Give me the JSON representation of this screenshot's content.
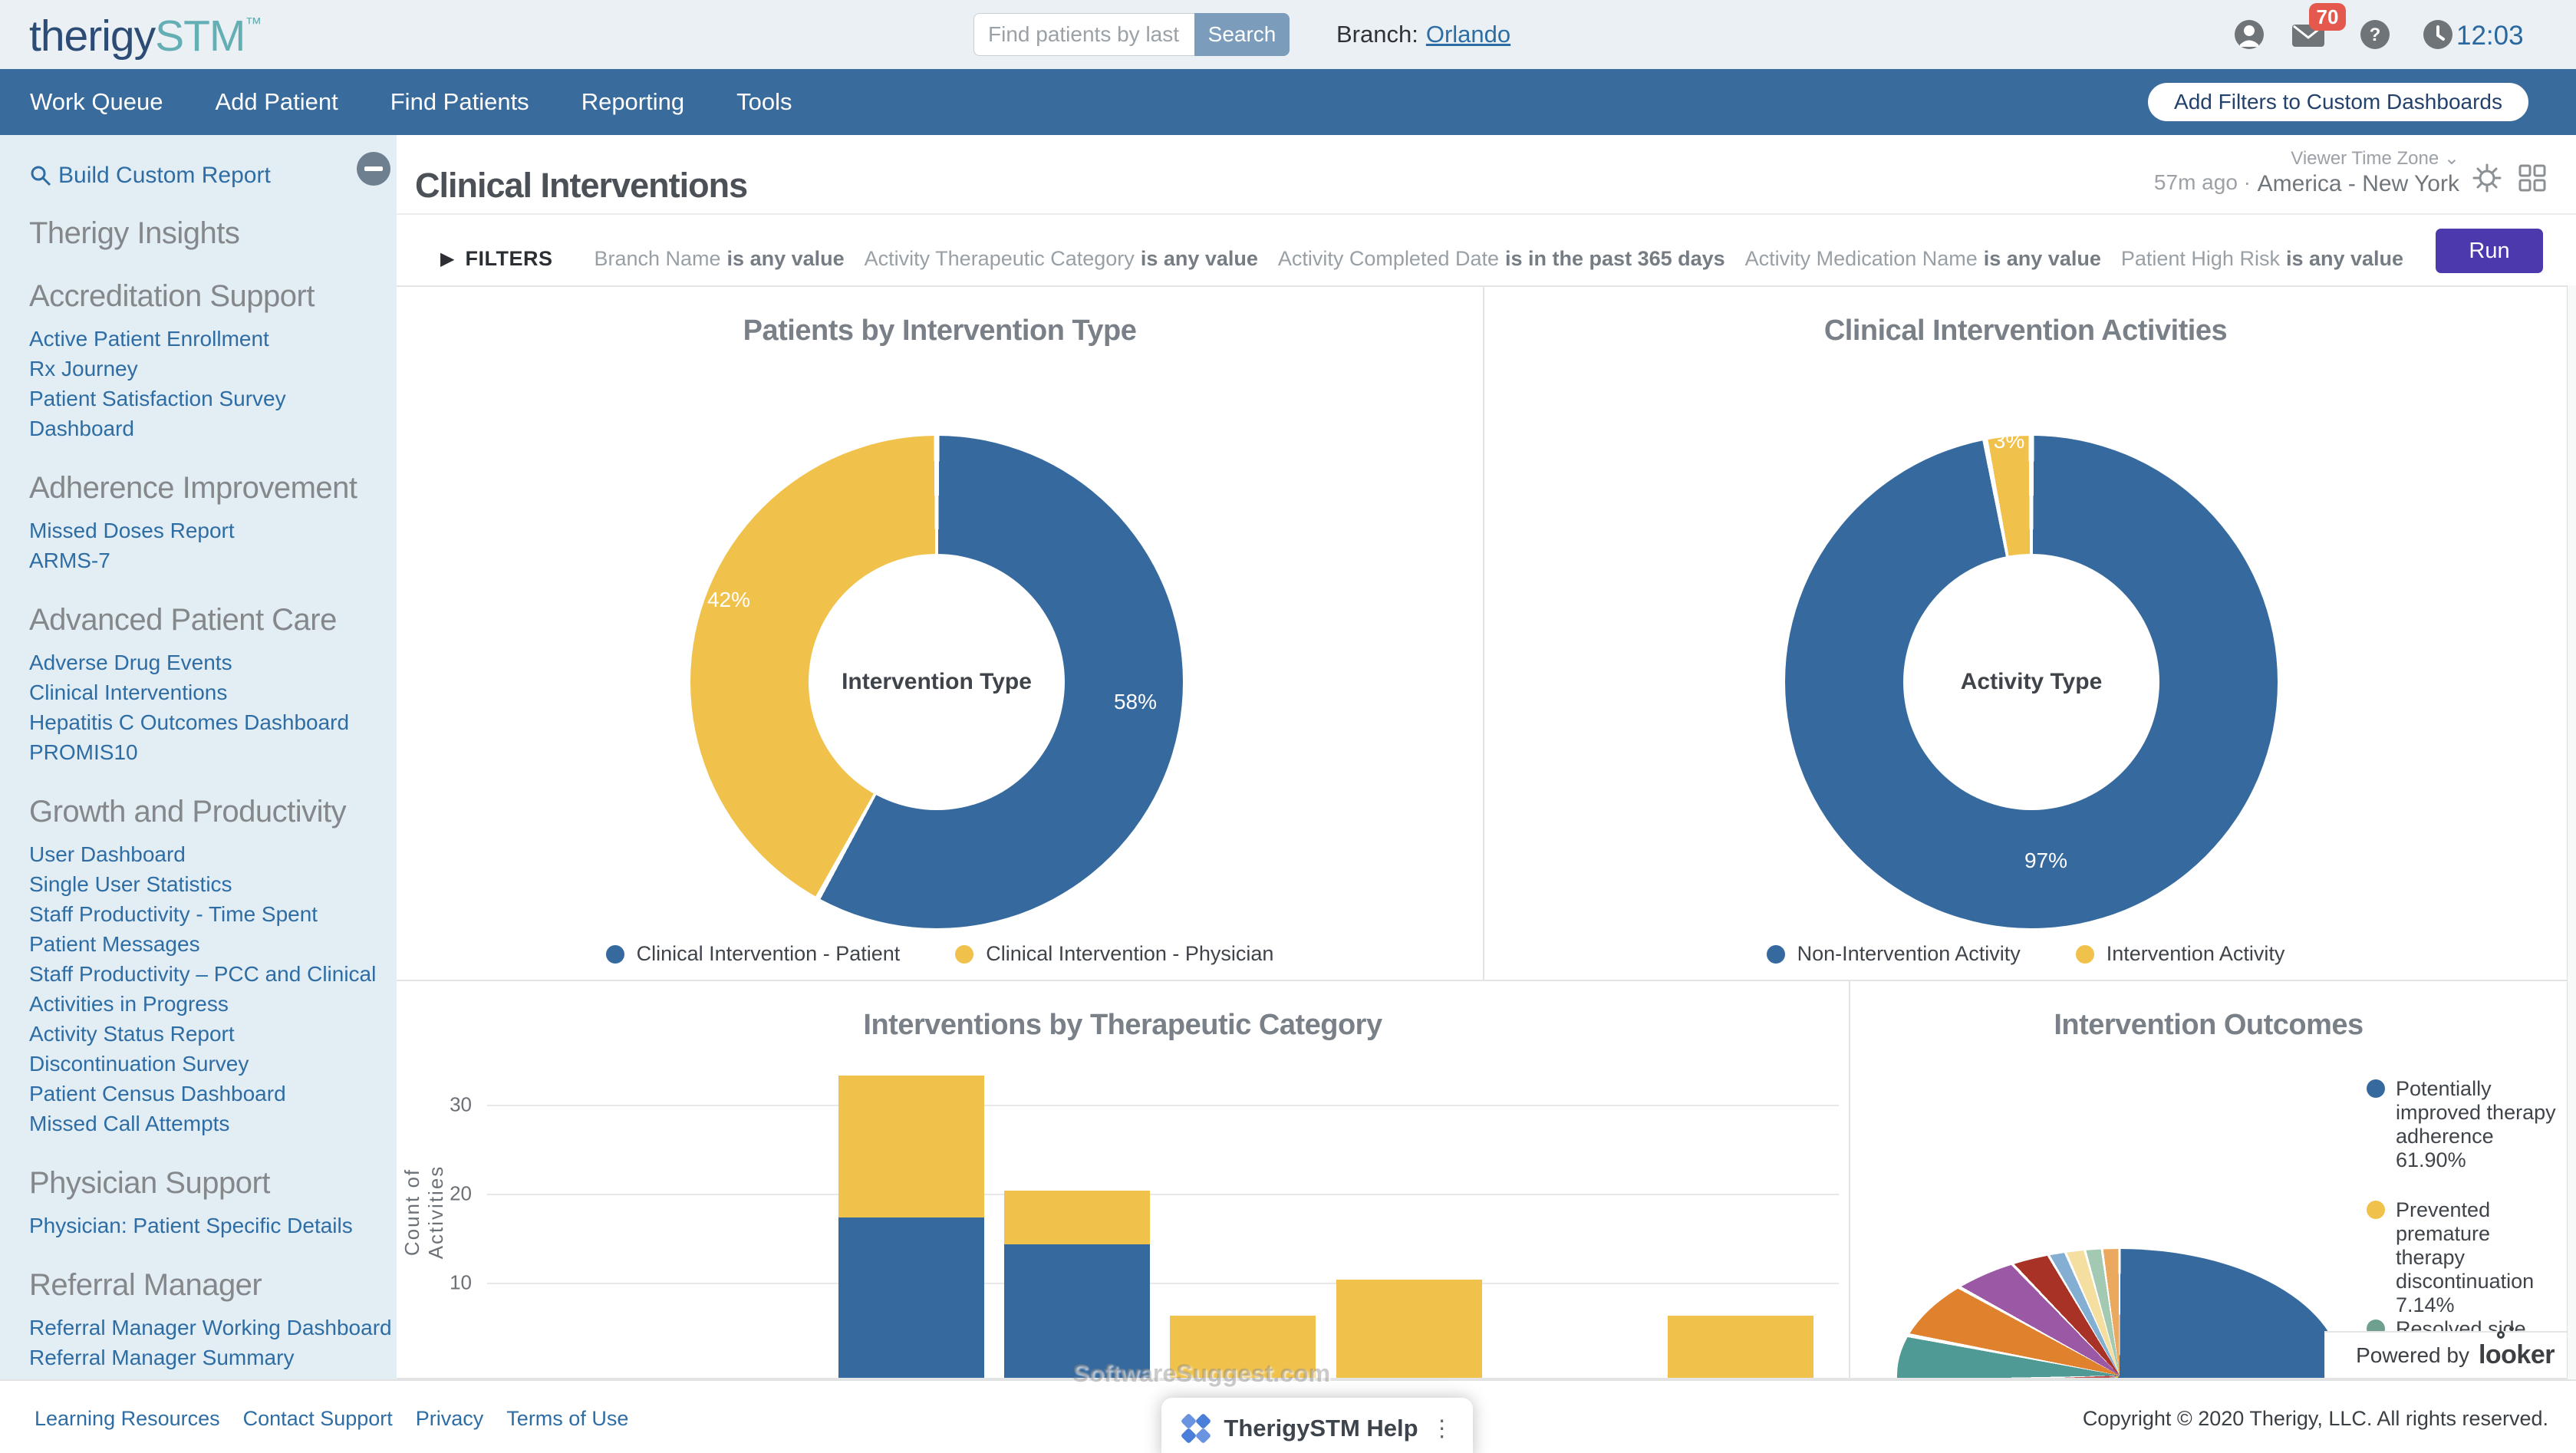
{
  "header": {
    "logo": {
      "primary": "therigy",
      "accent": "STM",
      "tm": "™"
    },
    "search": {
      "placeholder": "Find patients by last na",
      "button": "Search"
    },
    "branch": {
      "label": "Branch:",
      "value": "Orlando"
    },
    "mail_badge": "70",
    "time": "12:03"
  },
  "nav": {
    "items": [
      "Work Queue",
      "Add Patient",
      "Find Patients",
      "Reporting",
      "Tools"
    ],
    "add_filters_button": "Add Filters to Custom Dashboards"
  },
  "sidebar": {
    "build_custom_report": "Build Custom Report",
    "sections": [
      {
        "heading": "Therigy Insights",
        "links": []
      },
      {
        "heading": "Accreditation Support",
        "links": [
          "Active Patient Enrollment",
          "Rx Journey",
          "Patient Satisfaction Survey",
          "Dashboard"
        ]
      },
      {
        "heading": "Adherence Improvement",
        "links": [
          "Missed Doses Report",
          "ARMS-7"
        ]
      },
      {
        "heading": "Advanced Patient Care",
        "links": [
          "Adverse Drug Events",
          "Clinical Interventions",
          "Hepatitis C Outcomes Dashboard",
          "PROMIS10"
        ]
      },
      {
        "heading": "Growth and Productivity",
        "links": [
          "User Dashboard",
          "Single User Statistics",
          "Staff Productivity - Time Spent",
          "Patient Messages",
          "Staff Productivity – PCC and Clinical",
          "Activities in Progress",
          "Activity Status Report",
          "Discontinuation Survey",
          "Patient Census Dashboard",
          "Missed Call Attempts"
        ]
      },
      {
        "heading": "Physician Support",
        "links": [
          "Physician: Patient Specific Details"
        ]
      },
      {
        "heading": "Referral Manager",
        "links": [
          "Referral Manager Working Dashboard",
          "Referral Manager Summary"
        ]
      }
    ]
  },
  "page": {
    "title": "Clinical Interventions",
    "last_run": "57m ago  ·",
    "timezone_label": "Viewer Time Zone ⌄",
    "timezone_value": "America - New York"
  },
  "filters": {
    "label": "FILTERS",
    "caret": "▶",
    "items": [
      {
        "name": "Branch Name",
        "value": "is any value"
      },
      {
        "name": "Activity Therapeutic Category",
        "value": "is any value"
      },
      {
        "name": "Activity Completed Date",
        "value": "is in the past 365 days"
      },
      {
        "name": "Activity Medication Name",
        "value": "is any value"
      },
      {
        "name": "Patient High Risk",
        "value": "is any value"
      }
    ],
    "run_button": "Run"
  },
  "chart_data": [
    {
      "type": "pie",
      "variant": "donut",
      "title": "Patients by Intervention Type",
      "center_label": "Intervention Type",
      "legend_position": "bottom",
      "slices": [
        {
          "label": "Clinical Intervention - Patient",
          "pct": 58,
          "color": "#36699E",
          "data_label": "58%"
        },
        {
          "label": "Clinical Intervention - Physician",
          "pct": 42,
          "color": "#F0C24B",
          "data_label": "42%"
        }
      ]
    },
    {
      "type": "pie",
      "variant": "donut",
      "title": "Clinical Intervention Activities",
      "center_label": "Activity Type",
      "legend_position": "bottom",
      "slices": [
        {
          "label": "Non-Intervention Activity",
          "pct": 97,
          "color": "#36699E",
          "data_label": "97%"
        },
        {
          "label": "Intervention Activity",
          "pct": 3,
          "color": "#F0C24B",
          "data_label": "3%"
        }
      ]
    },
    {
      "type": "bar",
      "variant": "stacked",
      "title": "Interventions by Therapeutic Category",
      "ylabel": "Count of Activities",
      "yticks": [
        10,
        20,
        30
      ],
      "categories": [
        "",
        "",
        "",
        "",
        "",
        ""
      ],
      "series": [
        {
          "name": "series-blue",
          "color": "#36699E",
          "values": [
            18,
            15,
            0,
            0,
            0,
            0
          ]
        },
        {
          "name": "series-yellow",
          "color": "#F0C24B",
          "values": [
            16,
            6,
            7,
            11,
            0,
            7
          ]
        }
      ],
      "x_axis_labels_visible": false
    },
    {
      "type": "pie",
      "variant": "pie",
      "title": "Intervention Outcomes",
      "clipped_bottom": true,
      "legend_position": "right",
      "slices": [
        {
          "label": "Potentially improved therapy adherence",
          "pct": 61.9,
          "color": "#36699E"
        },
        {
          "label": "Prevented premature therapy discontinuation",
          "pct": 7.14,
          "color": "#F0C24B"
        },
        {
          "label": "",
          "pct": 2.5,
          "color": "#7FA3C6"
        },
        {
          "label": "",
          "pct": 3.0,
          "color": "#C0504D"
        },
        {
          "label": "",
          "pct": 3.46,
          "color": "#4F9A94"
        },
        {
          "label": "",
          "pct": 5.0,
          "color": "#E0812E"
        },
        {
          "label": "",
          "pct": 4.8,
          "color": "#9B59A5"
        },
        {
          "label": "",
          "pct": 3.7,
          "color": "#A93226"
        },
        {
          "label": "",
          "pct": 1.9,
          "color": "#85AED3"
        },
        {
          "label": "",
          "pct": 2.3,
          "color": "#F4DFA0"
        },
        {
          "label": "",
          "pct": 2.1,
          "color": "#A3C9B2"
        },
        {
          "label": "",
          "pct": 2.2,
          "color": "#EBA85F"
        }
      ],
      "legend": [
        {
          "label": "Potentially improved therapy adherence 61.90%",
          "color": "#36699E"
        },
        {
          "label": "Prevented premature therapy discontinuation 7.14%",
          "color": "#F0C24B"
        },
        {
          "label": "Resolved side",
          "color": "#6FA08F",
          "clipped": true
        }
      ]
    }
  ],
  "powered": {
    "prefix": "Powered by",
    "brand": "looker"
  },
  "footer": {
    "links": [
      "Learning Resources",
      "Contact Support",
      "Privacy",
      "Terms of Use"
    ],
    "copyright": "Copyright © 2020 Therigy, LLC. All rights reserved."
  },
  "overlays": {
    "watermark": "SoftwareSuggest",
    "watermark_suffix": ".com",
    "help_label": "TherigySTM Help",
    "help_dots": "⋮"
  }
}
